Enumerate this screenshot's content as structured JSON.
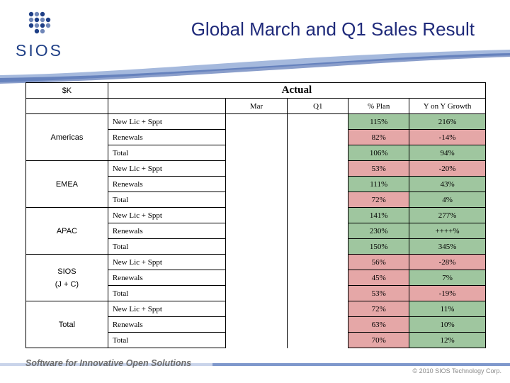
{
  "header": {
    "logo_text": "SIOS",
    "title": "Global March and Q1 Sales Result"
  },
  "table": {
    "unit_label": "$K",
    "group_label": "Actual",
    "columns": [
      "Mar",
      "Q1",
      "% Plan",
      "Y on Y Growth"
    ],
    "regions": [
      {
        "name": "Americas",
        "name_line2": "",
        "rows": [
          {
            "metric": "New Lic + Sppt",
            "mar": "",
            "q1": "",
            "plan": "115%",
            "plan_status": "green",
            "yoy": "216%",
            "yoy_status": "green"
          },
          {
            "metric": "Renewals",
            "mar": "",
            "q1": "",
            "plan": "82%",
            "plan_status": "red",
            "yoy": "-14%",
            "yoy_status": "red"
          },
          {
            "metric": "Total",
            "mar": "",
            "q1": "",
            "plan": "106%",
            "plan_status": "green",
            "yoy": "94%",
            "yoy_status": "green"
          }
        ]
      },
      {
        "name": "EMEA",
        "name_line2": "",
        "rows": [
          {
            "metric": "New Lic + Sppt",
            "mar": "",
            "q1": "",
            "plan": "53%",
            "plan_status": "red",
            "yoy": "-20%",
            "yoy_status": "red"
          },
          {
            "metric": "Renewals",
            "mar": "",
            "q1": "",
            "plan": "111%",
            "plan_status": "green",
            "yoy": "43%",
            "yoy_status": "green"
          },
          {
            "metric": "Total",
            "mar": "",
            "q1": "",
            "plan": "72%",
            "plan_status": "red",
            "yoy": "4%",
            "yoy_status": "green"
          }
        ]
      },
      {
        "name": "APAC",
        "name_line2": "",
        "rows": [
          {
            "metric": "New Lic + Sppt",
            "mar": "",
            "q1": "",
            "plan": "141%",
            "plan_status": "green",
            "yoy": "277%",
            "yoy_status": "green"
          },
          {
            "metric": "Renewals",
            "mar": "",
            "q1": "",
            "plan": "230%",
            "plan_status": "green",
            "yoy": "++++%",
            "yoy_status": "green"
          },
          {
            "metric": "Total",
            "mar": "",
            "q1": "",
            "plan": "150%",
            "plan_status": "green",
            "yoy": "345%",
            "yoy_status": "green"
          }
        ]
      },
      {
        "name": "SIOS",
        "name_line2": "(J + C)",
        "rows": [
          {
            "metric": "New Lic + Sppt",
            "mar": "",
            "q1": "",
            "plan": "56%",
            "plan_status": "red",
            "yoy": "-28%",
            "yoy_status": "red"
          },
          {
            "metric": "Renewals",
            "mar": "",
            "q1": "",
            "plan": "45%",
            "plan_status": "red",
            "yoy": "7%",
            "yoy_status": "green"
          },
          {
            "metric": "Total",
            "mar": "",
            "q1": "",
            "plan": "53%",
            "plan_status": "red",
            "yoy": "-19%",
            "yoy_status": "red"
          }
        ]
      },
      {
        "name": "Total",
        "name_line2": "",
        "rows": [
          {
            "metric": "New Lic + Sppt",
            "mar": "",
            "q1": "",
            "plan": "72%",
            "plan_status": "red",
            "yoy": "11%",
            "yoy_status": "green"
          },
          {
            "metric": "Renewals",
            "mar": "",
            "q1": "",
            "plan": "63%",
            "plan_status": "red",
            "yoy": "10%",
            "yoy_status": "green"
          },
          {
            "metric": "Total",
            "mar": "",
            "q1": "",
            "plan": "70%",
            "plan_status": "red",
            "yoy": "12%",
            "yoy_status": "green"
          }
        ]
      }
    ]
  },
  "footer": {
    "tagline": "Software for Innovative Open Solutions",
    "copyright": "© 2010 SIOS Technology Corp."
  },
  "colors": {
    "good": "#9fc69f",
    "bad": "#e5a7a7",
    "title": "#1f2a7a",
    "brand": "#1f3f86"
  }
}
